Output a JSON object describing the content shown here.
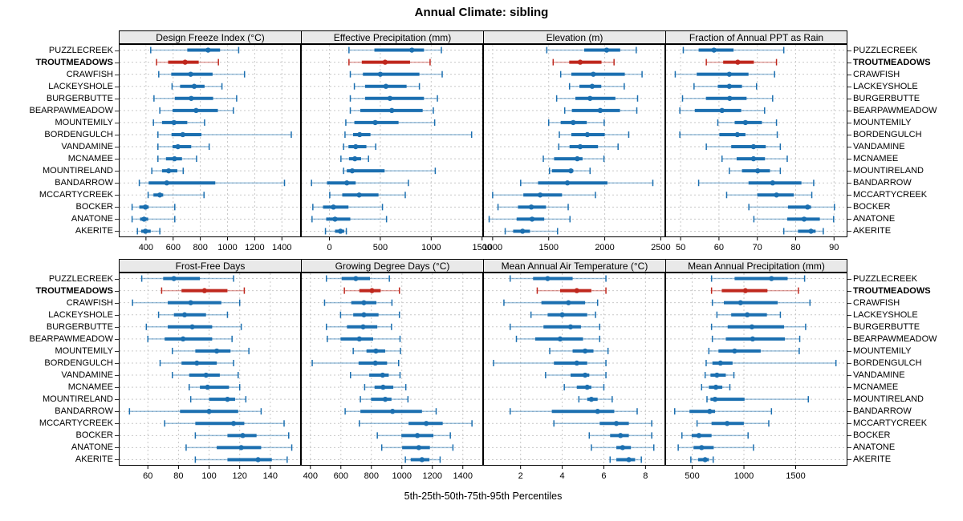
{
  "title": "Annual Climate: sibling",
  "xlabel": "5th-25th-50th-75th-95th Percentiles",
  "highlight_site": "TROUTMEADOWS",
  "sites": [
    "PUZZLECREEK",
    "TROUTMEADOWS",
    "CRAWFISH",
    "LACKEYSHOLE",
    "BURGERBUTTE",
    "BEARPAWMEADOW",
    "MOUNTEMILY",
    "BORDENGULCH",
    "VANDAMINE",
    "MCNAMEE",
    "MOUNTIRELAND",
    "BANDARROW",
    "MCCARTYCREEK",
    "BOCKER",
    "ANATONE",
    "AKERITE"
  ],
  "colors": {
    "series": "#1b6fb0",
    "series_light": "rgba(27,111,176,0.42)",
    "highlight": "#bf271d",
    "highlight_light": "rgba(191,39,29,0.42)",
    "grid": "#c9c9c9",
    "panel_border": "#000000",
    "strip_bg": "#e9e9e9"
  },
  "chart_data": {
    "type": "percentile-dotplot",
    "percentiles": [
      5,
      25,
      50,
      75,
      95
    ],
    "rows_top_to_bottom": [
      "PUZZLECREEK",
      "TROUTMEADOWS",
      "CRAWFISH",
      "LACKEYSHOLE",
      "BURGERBUTTE",
      "BEARPAWMEADOW",
      "MOUNTEMILY",
      "BORDENGULCH",
      "VANDAMINE",
      "MCNAMEE",
      "MOUNTIRELAND",
      "BANDARROW",
      "MCCARTYCREEK",
      "BOCKER",
      "ANATONE",
      "AKERITE"
    ],
    "legend": "none",
    "grid": "dashed both axes",
    "panels": [
      {
        "title": "Design Freeze Index (°C)",
        "group": "top",
        "domain": [
          200,
          1540
        ],
        "ticks": [
          400,
          600,
          800,
          1000,
          1200,
          1400
        ],
        "values": [
          [
            435,
            704,
            857,
            945,
            1082
          ],
          [
            478,
            563,
            688,
            788,
            933
          ],
          [
            494,
            586,
            729,
            890,
            1125
          ],
          [
            592,
            651,
            755,
            831,
            959
          ],
          [
            459,
            612,
            733,
            894,
            1067
          ],
          [
            502,
            596,
            769,
            929,
            1043
          ],
          [
            455,
            518,
            606,
            704,
            831
          ],
          [
            488,
            588,
            671,
            808,
            1469
          ],
          [
            488,
            596,
            635,
            733,
            865
          ],
          [
            488,
            547,
            610,
            665,
            772
          ],
          [
            443,
            518,
            567,
            631,
            674
          ],
          [
            351,
            420,
            553,
            910,
            1419
          ],
          [
            416,
            455,
            502,
            527,
            827
          ],
          [
            298,
            351,
            396,
            420,
            612
          ],
          [
            298,
            357,
            386,
            416,
            612
          ],
          [
            337,
            365,
            396,
            435,
            502
          ]
        ]
      },
      {
        "title": "Effective Precipitation (mm)",
        "group": "top",
        "domain": [
          -280,
          1510
        ],
        "ticks": [
          0,
          500,
          1000,
          1500
        ],
        "values": [
          [
            192,
            442,
            810,
            929,
            1100
          ],
          [
            192,
            318,
            547,
            792,
            989
          ],
          [
            205,
            329,
            500,
            884,
            1108
          ],
          [
            245,
            350,
            555,
            758,
            884
          ],
          [
            205,
            350,
            595,
            929,
            1061
          ],
          [
            205,
            303,
            613,
            916,
            1021
          ],
          [
            161,
            245,
            450,
            679,
            1034
          ],
          [
            153,
            232,
            297,
            403,
            1397
          ],
          [
            139,
            187,
            258,
            363,
            455
          ],
          [
            113,
            192,
            250,
            311,
            384
          ],
          [
            139,
            171,
            224,
            542,
            1040
          ],
          [
            -176,
            -24,
            171,
            258,
            776
          ],
          [
            3,
            126,
            292,
            482,
            745
          ],
          [
            -163,
            -63,
            39,
            187,
            521
          ],
          [
            -171,
            -32,
            55,
            205,
            561
          ],
          [
            -39,
            55,
            108,
            145,
            166
          ]
        ]
      },
      {
        "title": "Elevation (m)",
        "group": "top",
        "domain": [
          915,
          2540
        ],
        "ticks": [
          1000,
          1500,
          2000,
          2500
        ],
        "values": [
          [
            1483,
            1817,
            2017,
            2138,
            2281
          ],
          [
            1540,
            1683,
            1781,
            1971,
            2083
          ],
          [
            1607,
            1702,
            1898,
            2179,
            2333
          ],
          [
            1686,
            1774,
            1888,
            1969,
            2174
          ],
          [
            1571,
            1738,
            1869,
            2095,
            2293
          ],
          [
            1643,
            1707,
            1960,
            2136,
            2286
          ],
          [
            1500,
            1607,
            1719,
            1840,
            1995
          ],
          [
            1595,
            1702,
            1845,
            2000,
            2214
          ],
          [
            1590,
            1686,
            1781,
            1940,
            2119
          ],
          [
            1452,
            1548,
            1755,
            1802,
            1993
          ],
          [
            1507,
            1529,
            1698,
            1719,
            1869
          ],
          [
            1250,
            1405,
            1667,
            2024,
            2429
          ],
          [
            1000,
            1274,
            1424,
            1619,
            1917
          ],
          [
            1048,
            1226,
            1345,
            1476,
            1674
          ],
          [
            969,
            1214,
            1352,
            1460,
            1690
          ],
          [
            1112,
            1183,
            1267,
            1333,
            1579
          ]
        ]
      },
      {
        "title": "Fraction of Annual PPT as Rain",
        "group": "top",
        "domain": [
          46,
          93.5
        ],
        "ticks": [
          50,
          60,
          70,
          80,
          90
        ],
        "values": [
          [
            50.7,
            54.7,
            58.7,
            63.8,
            76.9
          ],
          [
            56.7,
            61.1,
            64.9,
            69.1,
            75.0
          ],
          [
            48.6,
            54.2,
            62.7,
            67.7,
            74.5
          ],
          [
            53.5,
            59.7,
            62.7,
            66.0,
            69.8
          ],
          [
            50.5,
            56.6,
            62.8,
            67.2,
            74.0
          ],
          [
            49.8,
            53.7,
            60.8,
            65.8,
            71.9
          ],
          [
            59.7,
            64.1,
            66.9,
            71.2,
            75.0
          ],
          [
            49.8,
            60.1,
            64.8,
            66.9,
            75.2
          ],
          [
            56.7,
            63.2,
            69.0,
            72.2,
            76.0
          ],
          [
            60.8,
            64.6,
            69.0,
            72.0,
            77.8
          ],
          [
            62.7,
            66.0,
            70.1,
            73.3,
            76.0
          ],
          [
            54.7,
            67.7,
            74.0,
            81.5,
            84.7
          ],
          [
            62.0,
            70.0,
            75.0,
            79.5,
            84.2
          ],
          [
            67.8,
            78.0,
            83.1,
            84.0,
            90.1
          ],
          [
            69.1,
            77.8,
            82.2,
            86.3,
            89.9
          ],
          [
            76.9,
            80.6,
            84.0,
            85.2,
            87.2
          ]
        ]
      },
      {
        "title": "Frost-Free Days",
        "group": "bottom",
        "domain": [
          41,
          160
        ],
        "ticks": [
          60,
          80,
          100,
          120,
          140
        ],
        "values": [
          [
            56,
            70,
            77,
            94,
            116
          ],
          [
            69,
            82,
            97,
            112,
            123
          ],
          [
            50,
            73,
            88,
            108,
            120
          ],
          [
            67,
            77,
            84,
            98,
            112
          ],
          [
            59,
            73,
            89,
            102,
            121
          ],
          [
            60,
            71,
            83,
            102,
            115
          ],
          [
            76,
            91,
            105,
            114,
            126
          ],
          [
            68,
            82,
            92,
            105,
            116
          ],
          [
            76,
            87,
            98,
            107,
            119
          ],
          [
            87,
            94,
            99,
            113,
            120
          ],
          [
            88,
            100,
            112,
            117,
            124
          ],
          [
            48,
            81,
            100,
            119,
            134
          ],
          [
            71,
            91,
            116,
            123,
            149
          ],
          [
            91,
            112,
            122,
            131,
            152
          ],
          [
            85,
            105,
            121,
            134,
            154
          ],
          [
            91,
            112,
            132,
            141,
            151
          ]
        ]
      },
      {
        "title": "Growing Degree Days (°C)",
        "group": "bottom",
        "domain": [
          338,
          1533
        ],
        "ticks": [
          400,
          600,
          800,
          1000,
          1200,
          1400
        ],
        "values": [
          [
            505,
            605,
            698,
            791,
            918
          ],
          [
            623,
            721,
            804,
            861,
            984
          ],
          [
            493,
            668,
            751,
            833,
            935
          ],
          [
            598,
            681,
            751,
            847,
            984
          ],
          [
            505,
            640,
            746,
            839,
            932
          ],
          [
            511,
            598,
            721,
            812,
            988
          ],
          [
            681,
            768,
            830,
            891,
            991
          ],
          [
            412,
            716,
            826,
            903,
            979
          ],
          [
            663,
            786,
            874,
            914,
            988
          ],
          [
            756,
            821,
            877,
            944,
            1026
          ],
          [
            728,
            798,
            891,
            932,
            1040
          ],
          [
            628,
            728,
            939,
            1132,
            1225
          ],
          [
            721,
            1044,
            1160,
            1268,
            1460
          ],
          [
            839,
            997,
            1102,
            1207,
            1318
          ],
          [
            868,
            1002,
            1111,
            1184,
            1335
          ],
          [
            1023,
            1058,
            1132,
            1181,
            1251
          ]
        ]
      },
      {
        "title": "Mean Annual Air Temperature (°C)",
        "group": "bottom",
        "domain": [
          0.2,
          8.95
        ],
        "ticks": [
          2,
          4,
          6,
          8
        ],
        "values": [
          [
            1.5,
            2.6,
            3.3,
            4.5,
            6.1
          ],
          [
            2.8,
            3.9,
            4.7,
            5.4,
            6.1
          ],
          [
            1.2,
            3.0,
            4.3,
            5.1,
            5.7
          ],
          [
            2.5,
            3.3,
            4.0,
            5.2,
            5.6
          ],
          [
            1.5,
            3.1,
            4.4,
            4.9,
            5.8
          ],
          [
            1.8,
            2.7,
            3.9,
            5.0,
            5.8
          ],
          [
            3.4,
            4.5,
            5.1,
            5.5,
            6.2
          ],
          [
            0.7,
            3.6,
            4.7,
            5.2,
            6.1
          ],
          [
            3.2,
            4.4,
            5.1,
            5.3,
            6.1
          ],
          [
            4.1,
            4.7,
            5.2,
            5.4,
            6.0
          ],
          [
            4.8,
            5.2,
            5.4,
            5.7,
            6.4
          ],
          [
            1.5,
            3.5,
            5.7,
            6.5,
            7.6
          ],
          [
            3.6,
            5.8,
            6.6,
            7.2,
            8.3
          ],
          [
            5.3,
            6.3,
            6.8,
            7.2,
            8.3
          ],
          [
            5.4,
            6.6,
            6.9,
            7.3,
            8.4
          ],
          [
            6.3,
            6.6,
            7.2,
            7.5,
            7.8
          ]
        ]
      },
      {
        "title": "Mean Annual Precipitation (mm)",
        "group": "bottom",
        "domain": [
          240,
          2000
        ],
        "ticks": [
          500,
          1000,
          1500
        ],
        "values": [
          [
            687,
            910,
            1266,
            1422,
            1586
          ],
          [
            687,
            786,
            1014,
            1227,
            1526
          ],
          [
            695,
            806,
            967,
            1326,
            1638
          ],
          [
            739,
            877,
            1032,
            1222,
            1352
          ],
          [
            687,
            843,
            1077,
            1388,
            1596
          ],
          [
            695,
            825,
            1084,
            1396,
            1539
          ],
          [
            661,
            754,
            910,
            1162,
            1534
          ],
          [
            635,
            695,
            773,
            890,
            1889
          ],
          [
            625,
            677,
            739,
            825,
            903
          ],
          [
            591,
            661,
            729,
            791,
            864
          ],
          [
            643,
            677,
            721,
            1006,
            1622
          ],
          [
            331,
            474,
            669,
            721,
            1266
          ],
          [
            547,
            687,
            838,
            999,
            1240
          ],
          [
            401,
            495,
            565,
            687,
            1040
          ],
          [
            365,
            513,
            591,
            708,
            1092
          ],
          [
            487,
            557,
            625,
            661,
            703
          ]
        ]
      }
    ]
  }
}
